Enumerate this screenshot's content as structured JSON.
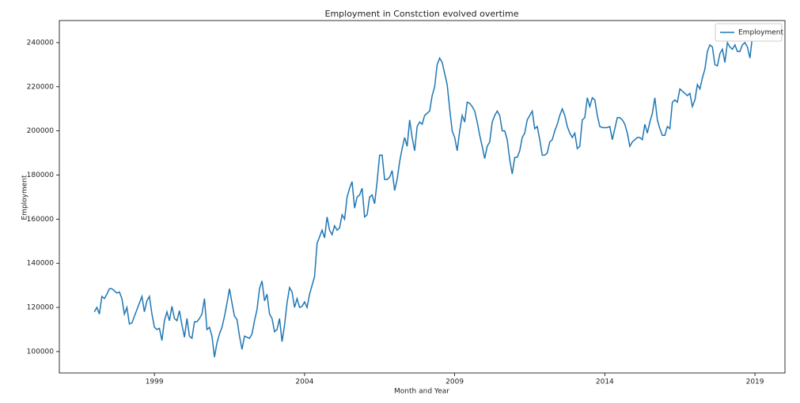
{
  "chart_data": {
    "type": "line",
    "title": "Employment in Constction evolved overtime",
    "x_label": "Month and Year",
    "y_label": "Employment",
    "legend": "upper right",
    "x": [
      "1997-01",
      "1997-02",
      "1997-03",
      "1997-04",
      "1997-05",
      "1997-06",
      "1997-07",
      "1997-08",
      "1997-09",
      "1997-10",
      "1997-11",
      "1997-12",
      "1998-01",
      "1998-02",
      "1998-03",
      "1998-04",
      "1998-05",
      "1998-06",
      "1998-07",
      "1998-08",
      "1998-09",
      "1998-10",
      "1998-11",
      "1998-12",
      "1999-01",
      "1999-02",
      "1999-03",
      "1999-04",
      "1999-05",
      "1999-06",
      "1999-07",
      "1999-08",
      "1999-09",
      "1999-10",
      "1999-11",
      "1999-12",
      "2000-01",
      "2000-02",
      "2000-03",
      "2000-04",
      "2000-05",
      "2000-06",
      "2000-07",
      "2000-08",
      "2000-09",
      "2000-10",
      "2000-11",
      "2000-12",
      "2001-01",
      "2001-02",
      "2001-03",
      "2001-04",
      "2001-05",
      "2001-06",
      "2001-07",
      "2001-08",
      "2001-09",
      "2001-10",
      "2001-11",
      "2001-12",
      "2002-01",
      "2002-02",
      "2002-03",
      "2002-04",
      "2002-05",
      "2002-06",
      "2002-07",
      "2002-08",
      "2002-09",
      "2002-10",
      "2002-11",
      "2002-12",
      "2003-01",
      "2003-02",
      "2003-03",
      "2003-04",
      "2003-05",
      "2003-06",
      "2003-07",
      "2003-08",
      "2003-09",
      "2003-10",
      "2003-11",
      "2003-12",
      "2004-01",
      "2004-02",
      "2004-03",
      "2004-04",
      "2004-05",
      "2004-06",
      "2004-07",
      "2004-08",
      "2004-09",
      "2004-10",
      "2004-11",
      "2004-12",
      "2005-01",
      "2005-02",
      "2005-03",
      "2005-04",
      "2005-05",
      "2005-06",
      "2005-07",
      "2005-08",
      "2005-09",
      "2005-10",
      "2005-11",
      "2005-12",
      "2006-01",
      "2006-02",
      "2006-03",
      "2006-04",
      "2006-05",
      "2006-06",
      "2006-07",
      "2006-08",
      "2006-09",
      "2006-10",
      "2006-11",
      "2006-12",
      "2007-01",
      "2007-02",
      "2007-03",
      "2007-04",
      "2007-05",
      "2007-06",
      "2007-07",
      "2007-08",
      "2007-09",
      "2007-10",
      "2007-11",
      "2007-12",
      "2008-01",
      "2008-02",
      "2008-03",
      "2008-04",
      "2008-05",
      "2008-06",
      "2008-07",
      "2008-08",
      "2008-09",
      "2008-10",
      "2008-11",
      "2008-12",
      "2009-01",
      "2009-02",
      "2009-03",
      "2009-04",
      "2009-05",
      "2009-06",
      "2009-07",
      "2009-08",
      "2009-09",
      "2009-10",
      "2009-11",
      "2009-12",
      "2010-01",
      "2010-02",
      "2010-03",
      "2010-04",
      "2010-05",
      "2010-06",
      "2010-07",
      "2010-08",
      "2010-09",
      "2010-10",
      "2010-11",
      "2010-12",
      "2011-01",
      "2011-02",
      "2011-03",
      "2011-04",
      "2011-05",
      "2011-06",
      "2011-07",
      "2011-08",
      "2011-09",
      "2011-10",
      "2011-11",
      "2011-12",
      "2012-01",
      "2012-02",
      "2012-03",
      "2012-04",
      "2012-05",
      "2012-06",
      "2012-07",
      "2012-08",
      "2012-09",
      "2012-10",
      "2012-11",
      "2012-12",
      "2013-01",
      "2013-02",
      "2013-03",
      "2013-04",
      "2013-05",
      "2013-06",
      "2013-07",
      "2013-08",
      "2013-09",
      "2013-10",
      "2013-11",
      "2013-12",
      "2014-01",
      "2014-02",
      "2014-03",
      "2014-04",
      "2014-05",
      "2014-06",
      "2014-07",
      "2014-08",
      "2014-09",
      "2014-10",
      "2014-11",
      "2014-12",
      "2015-01",
      "2015-02",
      "2015-03",
      "2015-04",
      "2015-05",
      "2015-06",
      "2015-07",
      "2015-08",
      "2015-09",
      "2015-10",
      "2015-11",
      "2015-12",
      "2016-01",
      "2016-02",
      "2016-03",
      "2016-04",
      "2016-05",
      "2016-06",
      "2016-07",
      "2016-08",
      "2016-09",
      "2016-10",
      "2016-11",
      "2016-12",
      "2017-01",
      "2017-02",
      "2017-03",
      "2017-04",
      "2017-05",
      "2017-06",
      "2017-07",
      "2017-08",
      "2017-09",
      "2017-10",
      "2017-11",
      "2017-12",
      "2018-01",
      "2018-02",
      "2018-03",
      "2018-04",
      "2018-05",
      "2018-06",
      "2018-07",
      "2018-08",
      "2018-09",
      "2018-10",
      "2018-11",
      "2018-12"
    ],
    "series": [
      {
        "name": "Employment",
        "color": "#1f77b4",
        "values": [
          118000,
          120000,
          117000,
          125000,
          124000,
          126000,
          128500,
          128500,
          127500,
          126500,
          127000,
          124000,
          117000,
          120000,
          112500,
          113000,
          116000,
          119000,
          122000,
          125000,
          118000,
          123000,
          125000,
          117000,
          111000,
          110000,
          110500,
          105000,
          114000,
          118000,
          114000,
          120500,
          115000,
          114000,
          118500,
          112000,
          106500,
          115000,
          107000,
          106000,
          113500,
          113500,
          115000,
          117000,
          124000,
          110000,
          111000,
          107000,
          97500,
          104000,
          108000,
          111000,
          116000,
          122000,
          128500,
          122000,
          116000,
          114500,
          107000,
          101000,
          107000,
          106500,
          106000,
          108000,
          114000,
          119000,
          128500,
          132000,
          123000,
          126000,
          117000,
          115000,
          109000,
          110000,
          115000,
          104500,
          112000,
          122000,
          129000,
          127000,
          120000,
          124000,
          120000,
          120500,
          122500,
          120000,
          126000,
          130000,
          134000,
          149000,
          152000,
          155000,
          151500,
          161000,
          155000,
          153000,
          157000,
          155000,
          156000,
          162000,
          160000,
          170000,
          174000,
          177000,
          165000,
          170000,
          171000,
          174000,
          161000,
          162000,
          170000,
          171000,
          167000,
          177000,
          189000,
          189000,
          178000,
          178000,
          179000,
          182000,
          173000,
          178000,
          186000,
          192000,
          197000,
          193000,
          205000,
          197000,
          191000,
          202000,
          204000,
          203000,
          207000,
          208000,
          209000,
          216000,
          220000,
          230000,
          233000,
          231000,
          226000,
          221000,
          210000,
          200000,
          197000,
          191000,
          200000,
          207000,
          204000,
          213000,
          212500,
          211000,
          209000,
          204000,
          198000,
          193000,
          187500,
          193000,
          195000,
          204000,
          207000,
          209000,
          207000,
          200000,
          200000,
          196000,
          187000,
          180500,
          188000,
          188000,
          191000,
          197000,
          199000,
          205000,
          207000,
          209000,
          201000,
          202000,
          196000,
          189000,
          189000,
          190000,
          195000,
          196000,
          200000,
          203000,
          207000,
          210000,
          207000,
          202000,
          199000,
          197000,
          199000,
          192000,
          193000,
          205000,
          206000,
          215000,
          211000,
          215000,
          214000,
          207000,
          202000,
          201500,
          201500,
          201500,
          202000,
          196000,
          201000,
          206000,
          206000,
          205000,
          203000,
          199000,
          193000,
          195000,
          196000,
          197000,
          197000,
          196000,
          203000,
          199000,
          204000,
          208000,
          215000,
          205000,
          201000,
          198000,
          198000,
          202000,
          201000,
          213000,
          214000,
          213000,
          219000,
          218000,
          217000,
          216000,
          217000,
          211000,
          214000,
          221000,
          219000,
          224000,
          228000,
          236000,
          239000,
          238000,
          230000,
          229500,
          235000,
          237000,
          231000,
          240000,
          238000,
          237000,
          239000,
          236000,
          236000,
          239000,
          240000,
          238000,
          233000,
          243000
        ]
      }
    ],
    "xlim": [
      "1995-11",
      "2020-01"
    ],
    "xticks": [
      {
        "value": "1999-01",
        "label": "1999"
      },
      {
        "value": "2004-01",
        "label": "2004"
      },
      {
        "value": "2009-01",
        "label": "2009"
      },
      {
        "value": "2014-01",
        "label": "2014"
      },
      {
        "value": "2019-01",
        "label": "2019"
      }
    ],
    "ylim": [
      90300,
      250000
    ],
    "yticks": [
      100000,
      120000,
      140000,
      160000,
      180000,
      200000,
      220000,
      240000
    ]
  }
}
